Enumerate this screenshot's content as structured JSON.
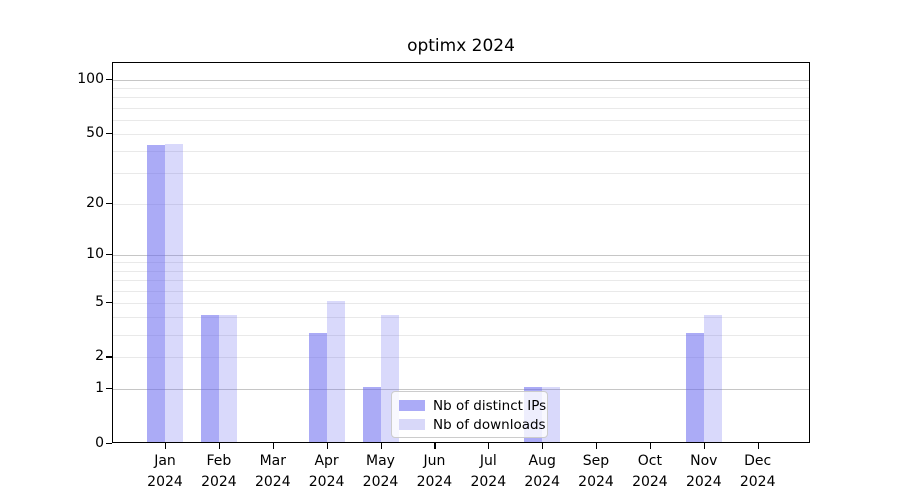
{
  "title": "optimx 2024",
  "chart_data": {
    "type": "bar",
    "title": "optimx 2024",
    "y_scale": "log10(1+x)",
    "categories": [
      "Jan 2024",
      "Feb 2024",
      "Mar 2024",
      "Apr 2024",
      "May 2024",
      "Jun 2024",
      "Jul 2024",
      "Aug 2024",
      "Sep 2024",
      "Oct 2024",
      "Nov 2024",
      "Dec 2024"
    ],
    "x_tick_months": [
      "Jan",
      "Feb",
      "Mar",
      "Apr",
      "May",
      "Jun",
      "Jul",
      "Aug",
      "Sep",
      "Oct",
      "Nov",
      "Dec"
    ],
    "x_tick_year": "2024",
    "series": [
      {
        "name": "Nb of distinct IPs",
        "values": [
          42,
          4,
          0,
          3,
          1,
          0,
          0,
          1,
          0,
          0,
          3,
          0
        ],
        "base_color": "#6666ee",
        "alpha": 0.55,
        "composite_color": "#ababf7"
      },
      {
        "name": "Nb of downloads",
        "values": [
          43,
          4,
          0,
          5,
          4,
          0,
          0,
          1,
          0,
          0,
          4,
          0
        ],
        "base_color": "#6666ee",
        "alpha": 0.25,
        "composite_color": "#d8d8f9"
      }
    ],
    "y_ticks": [
      0,
      1,
      2,
      5,
      10,
      20,
      50,
      100
    ],
    "ylim": [
      0,
      124
    ],
    "grid": {
      "on": true,
      "minor_values": [
        2,
        3,
        4,
        5,
        6,
        7,
        8,
        9,
        20,
        30,
        40,
        50,
        60,
        70,
        80,
        90
      ],
      "major_values": [
        1,
        10,
        100
      ],
      "minor_color": "#e9e9e9",
      "major_color": "#c6c6c6"
    },
    "legend_position": "inside-bottom-center"
  },
  "colors": {
    "background": "#ffffff",
    "axis": "#000000",
    "text": "#000000"
  }
}
